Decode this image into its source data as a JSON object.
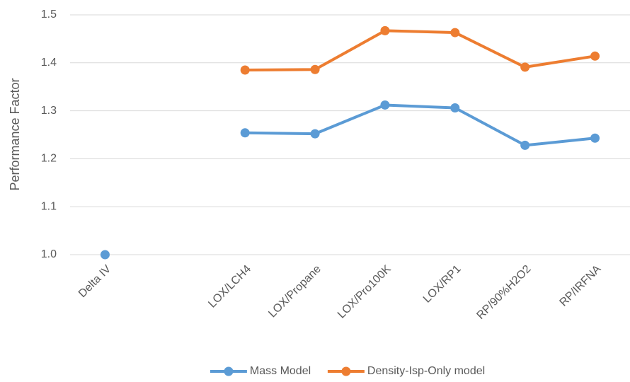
{
  "chart_data": {
    "type": "line",
    "y_label": "Performance Factor",
    "categories": [
      "Delta IV",
      null,
      "LOX/LCH4",
      "LOX/Propane",
      "LOX/Pro100K",
      "LOX/RP1",
      "RP/90%H2O2",
      "RP/IRFNA"
    ],
    "series": [
      {
        "name": "Mass Model",
        "color": "#5b9bd5",
        "values": [
          1.0,
          null,
          1.254,
          1.252,
          1.312,
          1.306,
          1.228,
          1.243
        ]
      },
      {
        "name": "Density-Isp-Only model",
        "color": "#ed7d31",
        "values": [
          null,
          null,
          1.385,
          1.386,
          1.467,
          1.463,
          1.391,
          1.414
        ]
      }
    ],
    "ylim": [
      1.0,
      1.5
    ],
    "yticks": [
      {
        "value": 1.0,
        "label": "1.0"
      },
      1.1,
      1.2,
      1.3,
      1.4,
      1.5
    ],
    "grid": true,
    "legend": "bottom"
  }
}
